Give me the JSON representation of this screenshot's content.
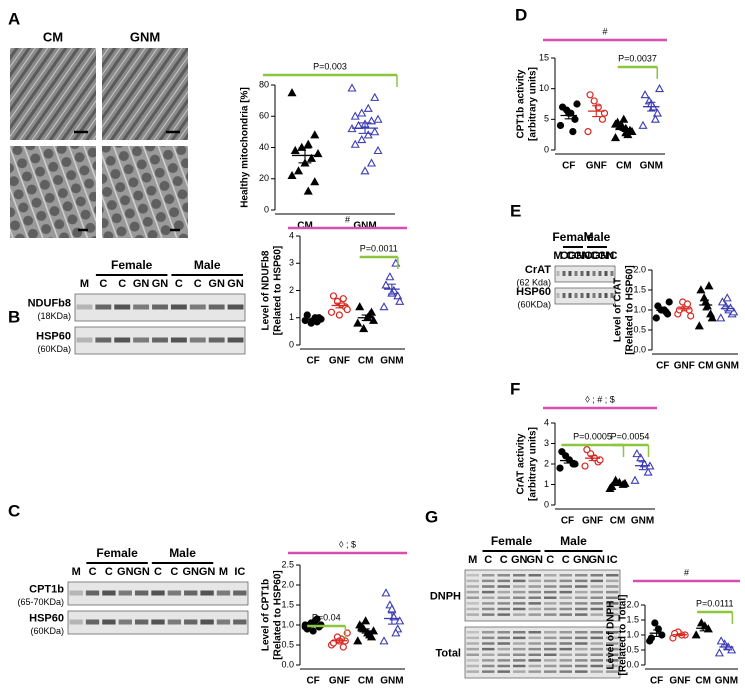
{
  "chart_data": [
    {
      "type": "dotplot",
      "ylabel": "Healthy mitochondria [%]",
      "ylim": [
        0,
        80
      ],
      "yticks": [
        0,
        20,
        40,
        60,
        80
      ],
      "series": [
        {
          "name": "CM",
          "color": "#000000",
          "marker": "triangle",
          "filled": true,
          "values": [
            75,
            48,
            42,
            40,
            38,
            36,
            33,
            30,
            25,
            22,
            18,
            12
          ]
        },
        {
          "name": "GNM",
          "color": "#3b3bb3",
          "marker": "triangle",
          "filled": false,
          "values": [
            78,
            72,
            65,
            62,
            60,
            58,
            57,
            55,
            54,
            52,
            50,
            48,
            45,
            42,
            38,
            30,
            25
          ]
        }
      ],
      "annotations": [
        {
          "text": "P=0.003",
          "color": "#8cc63f"
        }
      ]
    },
    {
      "type": "dotplot",
      "ylabel": "Level of NDUFb8",
      "ylabel2": "[Related to HSP60]",
      "ylim": [
        0,
        4
      ],
      "yticks": [
        0,
        1,
        2,
        3,
        4
      ],
      "series": [
        {
          "name": "CF",
          "color": "#000000",
          "marker": "circle",
          "filled": true,
          "values": [
            0.9,
            1.0,
            1.0,
            0.8,
            1.1,
            0.95,
            0.85
          ]
        },
        {
          "name": "GNF",
          "color": "#d7261e",
          "marker": "circle",
          "filled": false,
          "values": [
            1.2,
            1.4,
            1.5,
            1.6,
            1.8,
            1.3,
            1.7,
            1.1
          ]
        },
        {
          "name": "CM",
          "color": "#000000",
          "marker": "triangle",
          "filled": true,
          "values": [
            0.8,
            1.2,
            1.0,
            0.6,
            1.4,
            0.9,
            1.1
          ]
        },
        {
          "name": "GNM",
          "color": "#3b3bb3",
          "marker": "triangle",
          "filled": false,
          "values": [
            1.4,
            1.8,
            2.0,
            2.5,
            2.2,
            1.6,
            3.0,
            1.9
          ]
        }
      ],
      "annotations": [
        {
          "text": "#",
          "color": "#d64fb0"
        },
        {
          "text": "P=0.0011",
          "color": "#8cc63f"
        }
      ]
    },
    {
      "type": "dotplot",
      "ylabel": "Level of CPT1b",
      "ylabel2": "[Related to HSP60]",
      "ylim": [
        0,
        2.5
      ],
      "yticks": [
        {
          "value": 0,
          "label": "0.0"
        },
        0.5,
        {
          "value": 1,
          "label": "1.0"
        },
        1.5,
        {
          "value": 2,
          "label": "2.0"
        },
        2.5
      ],
      "series": [
        {
          "name": "CF",
          "color": "#000000",
          "marker": "circle",
          "filled": true,
          "values": [
            1.0,
            0.95,
            1.1,
            1.05,
            0.9,
            1.0,
            1.15,
            0.85,
            1.0,
            0.95
          ]
        },
        {
          "name": "GNF",
          "color": "#d7261e",
          "marker": "circle",
          "filled": false,
          "values": [
            0.5,
            0.6,
            0.65,
            0.7,
            0.55,
            0.8,
            0.45,
            0.6
          ]
        },
        {
          "name": "CM",
          "color": "#000000",
          "marker": "triangle",
          "filled": true,
          "values": [
            0.6,
            0.7,
            0.8,
            0.9,
            1.0,
            0.85,
            0.75,
            1.1,
            0.95
          ]
        },
        {
          "name": "GNM",
          "color": "#3b3bb3",
          "marker": "triangle",
          "filled": false,
          "values": [
            0.6,
            0.9,
            1.2,
            1.5,
            1.8,
            1.1,
            0.8,
            1.4
          ]
        }
      ],
      "annotations": [
        {
          "text": "◊ ; $",
          "color": "#d64fb0"
        },
        {
          "text": "P=0.04",
          "color": "#8cc63f"
        }
      ]
    },
    {
      "type": "dotplot",
      "ylabel": "CPT1b activity",
      "ylabel2": "[arbitrary units]",
      "ylim": [
        0,
        15
      ],
      "yticks": [
        0,
        5,
        10,
        15
      ],
      "series": [
        {
          "name": "CF",
          "color": "#000000",
          "marker": "circle",
          "filled": true,
          "values": [
            4,
            5,
            6,
            6.5,
            7,
            7.5,
            3,
            6
          ]
        },
        {
          "name": "GNF",
          "color": "#d7261e",
          "marker": "circle",
          "filled": false,
          "values": [
            3,
            5,
            7,
            8,
            9,
            6
          ]
        },
        {
          "name": "CM",
          "color": "#000000",
          "marker": "triangle",
          "filled": true,
          "values": [
            2,
            3,
            3.5,
            4,
            4.5,
            3,
            2.5,
            5,
            3.8,
            4.2,
            3.2,
            2.8
          ]
        },
        {
          "name": "GNM",
          "color": "#3b3bb3",
          "marker": "triangle",
          "filled": false,
          "values": [
            4,
            6,
            7,
            8,
            9,
            10,
            5,
            7.5
          ]
        }
      ],
      "annotations": [
        {
          "text": "#",
          "color": "#d64fb0"
        },
        {
          "text": "P=0.0037",
          "color": "#8cc63f"
        }
      ]
    },
    {
      "type": "dotplot",
      "ylabel": "Level of CrAT",
      "ylabel2": "[Related to HSP60]",
      "ylim": [
        0,
        2
      ],
      "yticks": [
        {
          "value": 0,
          "label": "0.0"
        },
        0.5,
        {
          "value": 1,
          "label": "1.0"
        },
        1.5,
        {
          "value": 2,
          "label": "2.0"
        }
      ],
      "series": [
        {
          "name": "CF",
          "color": "#000000",
          "marker": "circle",
          "filled": true,
          "values": [
            0.8,
            0.9,
            1.0,
            1.0,
            1.1,
            1.2,
            0.95
          ]
        },
        {
          "name": "GNF",
          "color": "#d7261e",
          "marker": "circle",
          "filled": false,
          "values": [
            0.9,
            1.0,
            1.1,
            1.2,
            1.0,
            0.85,
            1.15
          ]
        },
        {
          "name": "CM",
          "color": "#000000",
          "marker": "triangle",
          "filled": true,
          "values": [
            0.6,
            0.9,
            1.1,
            1.3,
            1.5,
            0.8,
            1.6,
            1.2
          ]
        },
        {
          "name": "GNM",
          "color": "#3b3bb3",
          "marker": "triangle",
          "filled": false,
          "values": [
            0.8,
            0.9,
            1.0,
            1.1,
            1.2,
            0.95,
            1.05,
            1.3
          ]
        }
      ],
      "annotations": []
    },
    {
      "type": "dotplot",
      "ylabel": "CrAT activity",
      "ylabel2": "[arbitrary units]",
      "ylim": [
        0,
        4
      ],
      "yticks": [
        0,
        1,
        2,
        3,
        4
      ],
      "series": [
        {
          "name": "CF",
          "color": "#000000",
          "marker": "circle",
          "filled": true,
          "values": [
            1.8,
            2.0,
            2.2,
            2.4,
            2.6,
            2.0
          ]
        },
        {
          "name": "GNF",
          "color": "#d7261e",
          "marker": "circle",
          "filled": false,
          "values": [
            1.9,
            2.1,
            2.3,
            2.5,
            2.7,
            2.2
          ]
        },
        {
          "name": "CM",
          "color": "#000000",
          "marker": "triangle",
          "filled": true,
          "values": [
            0.8,
            1.0,
            1.1,
            1.2,
            0.9,
            1.05
          ]
        },
        {
          "name": "GNM",
          "color": "#3b3bb3",
          "marker": "triangle",
          "filled": false,
          "values": [
            1.2,
            1.6,
            2.0,
            2.3,
            2.5,
            1.9
          ]
        }
      ],
      "annotations": [
        {
          "text": "◊ ; # ; $",
          "color": "#d64fb0"
        },
        {
          "text": "P=0.0005",
          "color": "#8cc63f"
        },
        {
          "text": "P=0.0054",
          "color": "#8cc63f"
        }
      ]
    },
    {
      "type": "dotplot",
      "ylabel": "Level of DNPH",
      "ylabel2": "[Related to Total]",
      "ylim": [
        0,
        2
      ],
      "yticks": [
        {
          "value": 0,
          "label": "0.0"
        },
        0.5,
        {
          "value": 1,
          "label": "1.0"
        },
        1.5,
        {
          "value": 2,
          "label": "2.0"
        }
      ],
      "series": [
        {
          "name": "CF",
          "color": "#000000",
          "marker": "circle",
          "filled": true,
          "values": [
            0.8,
            1.0,
            1.2,
            1.4,
            0.9
          ]
        },
        {
          "name": "GNF",
          "color": "#d7261e",
          "marker": "circle",
          "filled": false,
          "values": [
            0.9,
            1.0,
            1.0,
            1.1,
            1.05
          ]
        },
        {
          "name": "CM",
          "color": "#000000",
          "marker": "triangle",
          "filled": true,
          "values": [
            1.0,
            1.2,
            1.3,
            1.4
          ]
        },
        {
          "name": "GNM",
          "color": "#3b3bb3",
          "marker": "triangle",
          "filled": false,
          "values": [
            0.4,
            0.5,
            0.6,
            0.7,
            0.8
          ]
        }
      ],
      "annotations": [
        {
          "text": "#",
          "color": "#d64fb0"
        },
        {
          "text": "P=0.0111",
          "color": "#8cc63f"
        }
      ]
    }
  ],
  "panels": [
    {
      "letter": "A",
      "titles": [
        "CM",
        "GNM"
      ]
    },
    {
      "letter": "B",
      "groups": [
        "Female",
        "Male"
      ],
      "lanes": [
        "M",
        "C",
        "C",
        "GN",
        "GN",
        "C",
        "C",
        "GN",
        "GN"
      ],
      "rows": [
        [
          "NDUFb8",
          "(18KDa)"
        ],
        [
          "HSP60",
          "(60KDa)"
        ]
      ]
    },
    {
      "letter": "C",
      "groups": [
        "Female",
        "Male"
      ],
      "lanes": [
        "M",
        "C",
        "C",
        "GN",
        "GN",
        "C",
        "C",
        "GN",
        "GN",
        "M",
        "IC"
      ],
      "rows": [
        [
          "CPT1b",
          "(65-70KDa)"
        ],
        [
          "HSP60",
          "(60KDa)"
        ]
      ]
    },
    {
      "letter": "D"
    },
    {
      "letter": "E",
      "groups": [
        "Female",
        "Male"
      ],
      "lanes": [
        "M",
        "C",
        "C",
        "GN",
        "GN",
        "C",
        "C",
        "GN",
        "GN",
        "IC"
      ],
      "rows": [
        [
          "CrAT",
          "(62 Kda)"
        ],
        [
          "HSP60",
          "(60KDa)"
        ]
      ]
    },
    {
      "letter": "F"
    },
    {
      "letter": "G",
      "groups": [
        "Female",
        "Male"
      ],
      "lanes": [
        "M",
        "C",
        "C",
        "GN",
        "GN",
        "C",
        "C",
        "GN",
        "GN",
        "IC"
      ],
      "rows": [
        [
          "DNPH"
        ],
        [
          "Total"
        ]
      ]
    }
  ]
}
